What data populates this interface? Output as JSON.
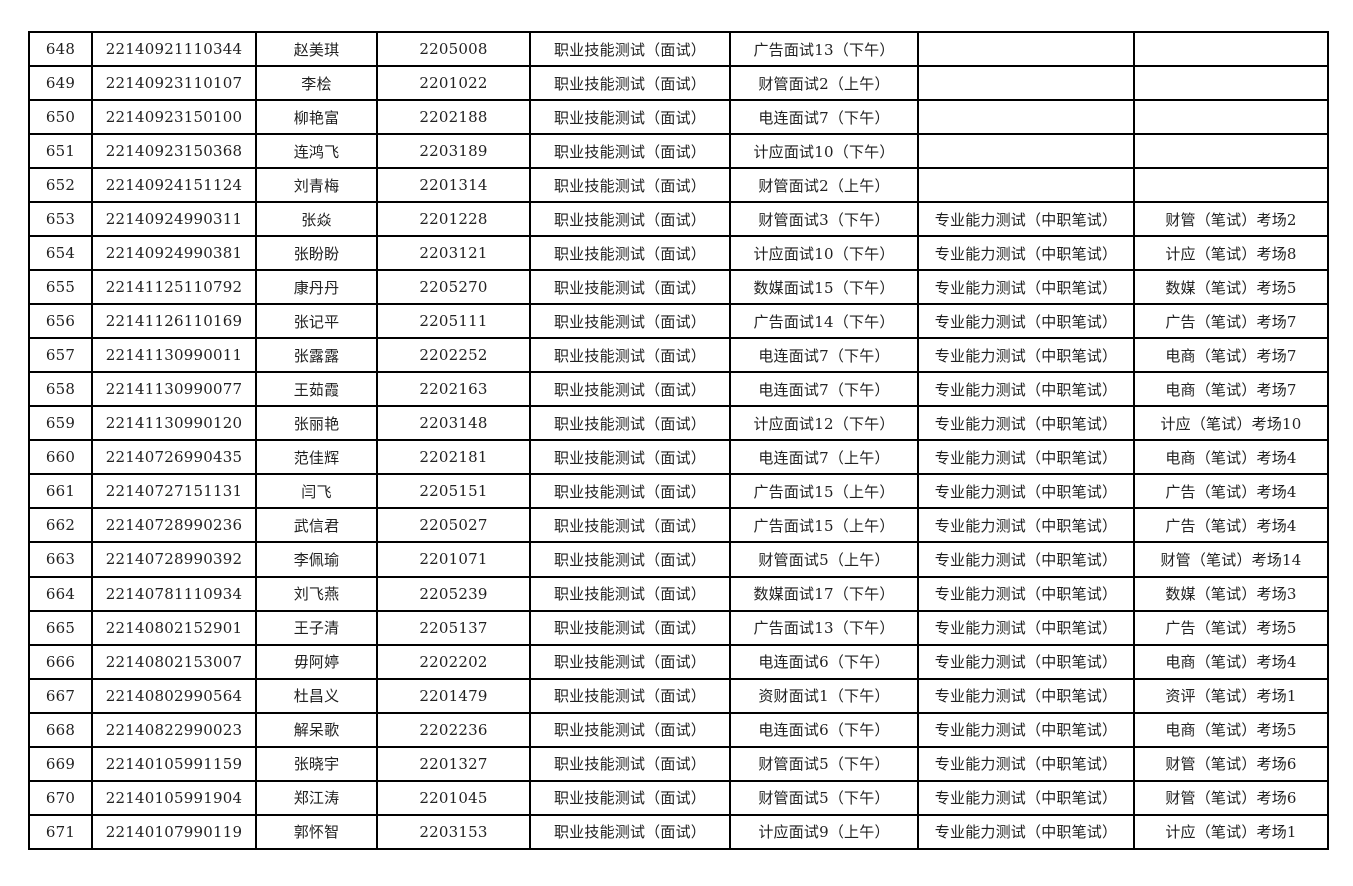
{
  "document": {
    "kind": "exam-assignment-table",
    "text_color": "#212121",
    "border_color": "#000000",
    "background_color": "#ffffff"
  },
  "table": {
    "column_keys": [
      "seq",
      "reg_id",
      "name",
      "exam_no",
      "skill_test",
      "session",
      "ability_test",
      "room"
    ],
    "rows": [
      {
        "seq": "648",
        "reg_id": "22140921110344",
        "name": "赵美琪",
        "exam_no": "2205008",
        "skill_test": "职业技能测试（面试）",
        "session": "广告面试13（下午）",
        "ability_test": "",
        "room": ""
      },
      {
        "seq": "649",
        "reg_id": "22140923110107",
        "name": "李桧",
        "exam_no": "2201022",
        "skill_test": "职业技能测试（面试）",
        "session": "财管面试2（上午）",
        "ability_test": "",
        "room": ""
      },
      {
        "seq": "650",
        "reg_id": "22140923150100",
        "name": "柳艳富",
        "exam_no": "2202188",
        "skill_test": "职业技能测试（面试）",
        "session": "电连面试7（下午）",
        "ability_test": "",
        "room": ""
      },
      {
        "seq": "651",
        "reg_id": "22140923150368",
        "name": "连鸿飞",
        "exam_no": "2203189",
        "skill_test": "职业技能测试（面试）",
        "session": "计应面试10（下午）",
        "ability_test": "",
        "room": ""
      },
      {
        "seq": "652",
        "reg_id": "22140924151124",
        "name": "刘青梅",
        "exam_no": "2201314",
        "skill_test": "职业技能测试（面试）",
        "session": "财管面试2（上午）",
        "ability_test": "",
        "room": ""
      },
      {
        "seq": "653",
        "reg_id": "22140924990311",
        "name": "张焱",
        "exam_no": "2201228",
        "skill_test": "职业技能测试（面试）",
        "session": "财管面试3（下午）",
        "ability_test": "专业能力测试（中职笔试）",
        "room": "财管（笔试）考场2"
      },
      {
        "seq": "654",
        "reg_id": "22140924990381",
        "name": "张盼盼",
        "exam_no": "2203121",
        "skill_test": "职业技能测试（面试）",
        "session": "计应面试10（下午）",
        "ability_test": "专业能力测试（中职笔试）",
        "room": "计应（笔试）考场8"
      },
      {
        "seq": "655",
        "reg_id": "22141125110792",
        "name": "康丹丹",
        "exam_no": "2205270",
        "skill_test": "职业技能测试（面试）",
        "session": "数媒面试15（下午）",
        "ability_test": "专业能力测试（中职笔试）",
        "room": "数媒（笔试）考场5"
      },
      {
        "seq": "656",
        "reg_id": "22141126110169",
        "name": "张记平",
        "exam_no": "2205111",
        "skill_test": "职业技能测试（面试）",
        "session": "广告面试14（下午）",
        "ability_test": "专业能力测试（中职笔试）",
        "room": "广告（笔试）考场7"
      },
      {
        "seq": "657",
        "reg_id": "22141130990011",
        "name": "张露露",
        "exam_no": "2202252",
        "skill_test": "职业技能测试（面试）",
        "session": "电连面试7（下午）",
        "ability_test": "专业能力测试（中职笔试）",
        "room": "电商（笔试）考场7"
      },
      {
        "seq": "658",
        "reg_id": "22141130990077",
        "name": "王茹霞",
        "exam_no": "2202163",
        "skill_test": "职业技能测试（面试）",
        "session": "电连面试7（下午）",
        "ability_test": "专业能力测试（中职笔试）",
        "room": "电商（笔试）考场7"
      },
      {
        "seq": "659",
        "reg_id": "22141130990120",
        "name": "张丽艳",
        "exam_no": "2203148",
        "skill_test": "职业技能测试（面试）",
        "session": "计应面试12（下午）",
        "ability_test": "专业能力测试（中职笔试）",
        "room": "计应（笔试）考场10"
      },
      {
        "seq": "660",
        "reg_id": "22140726990435",
        "name": "范佳辉",
        "exam_no": "2202181",
        "skill_test": "职业技能测试（面试）",
        "session": "电连面试7（上午）",
        "ability_test": "专业能力测试（中职笔试）",
        "room": "电商（笔试）考场4"
      },
      {
        "seq": "661",
        "reg_id": "22140727151131",
        "name": "闫飞",
        "exam_no": "2205151",
        "skill_test": "职业技能测试（面试）",
        "session": "广告面试15（上午）",
        "ability_test": "专业能力测试（中职笔试）",
        "room": "广告（笔试）考场4"
      },
      {
        "seq": "662",
        "reg_id": "22140728990236",
        "name": "武信君",
        "exam_no": "2205027",
        "skill_test": "职业技能测试（面试）",
        "session": "广告面试15（上午）",
        "ability_test": "专业能力测试（中职笔试）",
        "room": "广告（笔试）考场4"
      },
      {
        "seq": "663",
        "reg_id": "22140728990392",
        "name": "李佩瑜",
        "exam_no": "2201071",
        "skill_test": "职业技能测试（面试）",
        "session": "财管面试5（上午）",
        "ability_test": "专业能力测试（中职笔试）",
        "room": "财管（笔试）考场14"
      },
      {
        "seq": "664",
        "reg_id": "22140781110934",
        "name": "刘飞燕",
        "exam_no": "2205239",
        "skill_test": "职业技能测试（面试）",
        "session": "数媒面试17（下午）",
        "ability_test": "专业能力测试（中职笔试）",
        "room": "数媒（笔试）考场3"
      },
      {
        "seq": "665",
        "reg_id": "22140802152901",
        "name": "王子清",
        "exam_no": "2205137",
        "skill_test": "职业技能测试（面试）",
        "session": "广告面试13（下午）",
        "ability_test": "专业能力测试（中职笔试）",
        "room": "广告（笔试）考场5"
      },
      {
        "seq": "666",
        "reg_id": "22140802153007",
        "name": "毋阿婷",
        "exam_no": "2202202",
        "skill_test": "职业技能测试（面试）",
        "session": "电连面试6（下午）",
        "ability_test": "专业能力测试（中职笔试）",
        "room": "电商（笔试）考场4"
      },
      {
        "seq": "667",
        "reg_id": "22140802990564",
        "name": "杜昌义",
        "exam_no": "2201479",
        "skill_test": "职业技能测试（面试）",
        "session": "资财面试1（下午）",
        "ability_test": "专业能力测试（中职笔试）",
        "room": "资评（笔试）考场1"
      },
      {
        "seq": "668",
        "reg_id": "22140822990023",
        "name": "解呆歌",
        "exam_no": "2202236",
        "skill_test": "职业技能测试（面试）",
        "session": "电连面试6（下午）",
        "ability_test": "专业能力测试（中职笔试）",
        "room": "电商（笔试）考场5"
      },
      {
        "seq": "669",
        "reg_id": "22140105991159",
        "name": "张晓宇",
        "exam_no": "2201327",
        "skill_test": "职业技能测试（面试）",
        "session": "财管面试5（下午）",
        "ability_test": "专业能力测试（中职笔试）",
        "room": "财管（笔试）考场6"
      },
      {
        "seq": "670",
        "reg_id": "22140105991904",
        "name": "郑江涛",
        "exam_no": "2201045",
        "skill_test": "职业技能测试（面试）",
        "session": "财管面试5（下午）",
        "ability_test": "专业能力测试（中职笔试）",
        "room": "财管（笔试）考场6"
      },
      {
        "seq": "671",
        "reg_id": "22140107990119",
        "name": "郭怀智",
        "exam_no": "2203153",
        "skill_test": "职业技能测试（面试）",
        "session": "计应面试9（上午）",
        "ability_test": "专业能力测试（中职笔试）",
        "room": "计应（笔试）考场1"
      }
    ]
  }
}
